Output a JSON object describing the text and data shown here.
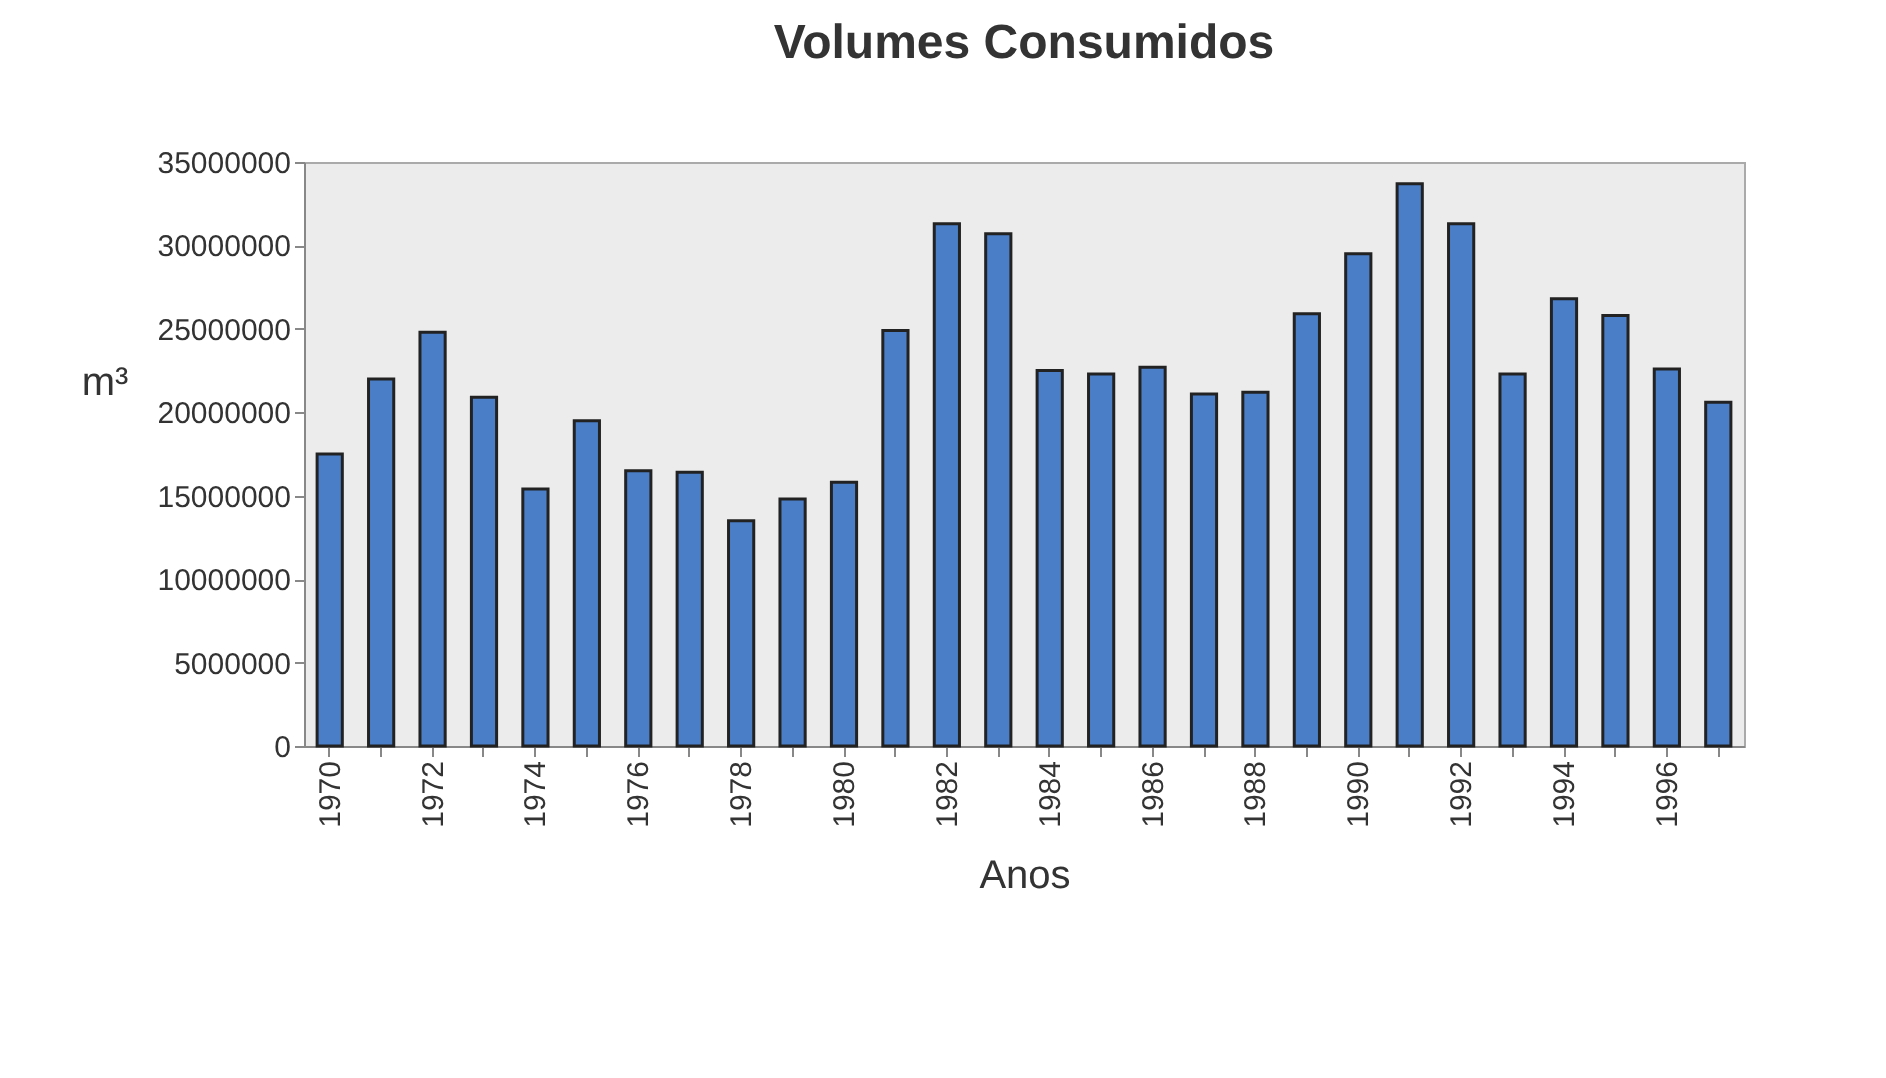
{
  "chart_data": {
    "type": "bar",
    "title": "Volumes Consumidos",
    "xlabel": "Anos",
    "ylabel": "m³",
    "categories": [
      "1970",
      null,
      "1972",
      null,
      "1974",
      null,
      "1976",
      null,
      "1978",
      null,
      "1980",
      null,
      "1982",
      null,
      "1984",
      null,
      "1986",
      null,
      "1988",
      null,
      "1990",
      null,
      "1992",
      null,
      "1994",
      null,
      "1996",
      null
    ],
    "values": [
      17500000,
      22000000,
      24800000,
      20900000,
      15400000,
      19500000,
      16500000,
      16400000,
      13500000,
      14800000,
      15800000,
      24900000,
      31300000,
      30700000,
      22500000,
      22300000,
      22700000,
      21100000,
      21200000,
      25900000,
      29500000,
      33700000,
      31300000,
      22300000,
      26800000,
      25800000,
      22600000,
      20600000
    ],
    "color": "#4a7fc8",
    "ylim": [
      0,
      35000000
    ],
    "yticks": [
      0,
      5000000,
      10000000,
      15000000,
      20000000,
      25000000,
      30000000,
      35000000
    ],
    "grid": false
  }
}
